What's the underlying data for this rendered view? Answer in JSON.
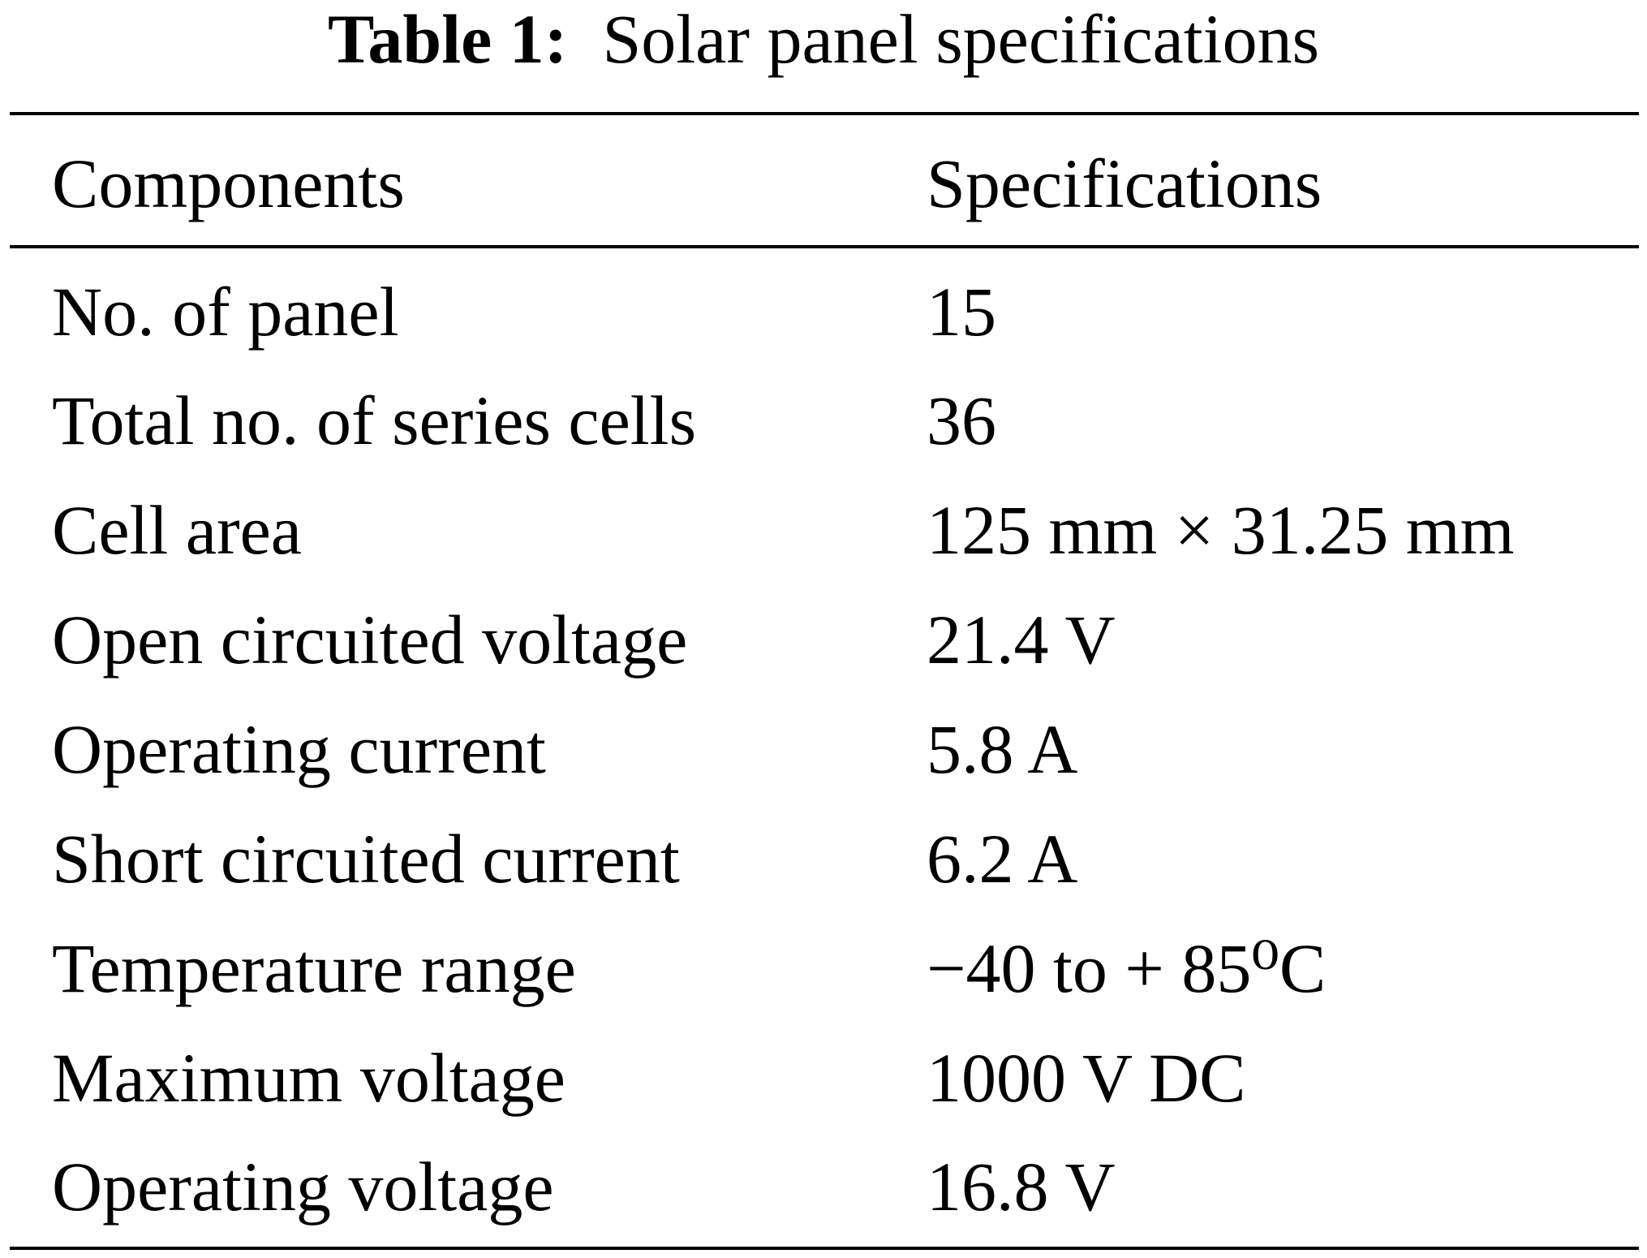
{
  "caption": {
    "label": "Table 1:",
    "text": "Solar panel specifications"
  },
  "table": {
    "headers": [
      "Components",
      "Specifications"
    ],
    "rows": [
      {
        "component": "No. of panel",
        "specification": "15"
      },
      {
        "component": "Total no. of series cells",
        "specification": "36"
      },
      {
        "component": "Cell area",
        "specification": "125 mm × 31.25 mm"
      },
      {
        "component": "Open circuited voltage",
        "specification": "21.4 V"
      },
      {
        "component": "Operating current",
        "specification": "5.8 A"
      },
      {
        "component": "Short circuited current",
        "specification": "6.2 A"
      },
      {
        "component": "Temperature range",
        "specification": "−40 to + 85⁰C"
      },
      {
        "component": "Maximum voltage",
        "specification": "1000 V DC"
      },
      {
        "component": "Operating voltage",
        "specification": "16.8 V"
      }
    ]
  }
}
